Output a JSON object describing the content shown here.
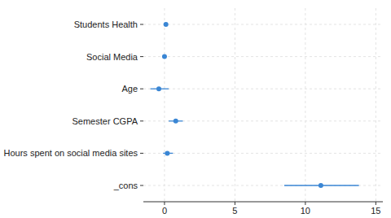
{
  "chart_data": {
    "type": "dot",
    "orientation": "horizontal",
    "categories": [
      "Students Health",
      "Social Media",
      "Age",
      "Semester CGPA",
      "Hours spent on social media sites",
      "_cons"
    ],
    "values": [
      0.1,
      0.0,
      -0.4,
      0.8,
      0.2,
      11.1
    ],
    "lower": [
      0.05,
      -0.05,
      -1.0,
      0.3,
      -0.1,
      8.5
    ],
    "upper": [
      0.15,
      0.05,
      0.3,
      1.3,
      0.6,
      13.8
    ],
    "color": "#3a86d4",
    "xlim": [
      -1.5,
      15.5
    ],
    "xticks": [
      0,
      5,
      10,
      15
    ],
    "grid": true
  }
}
